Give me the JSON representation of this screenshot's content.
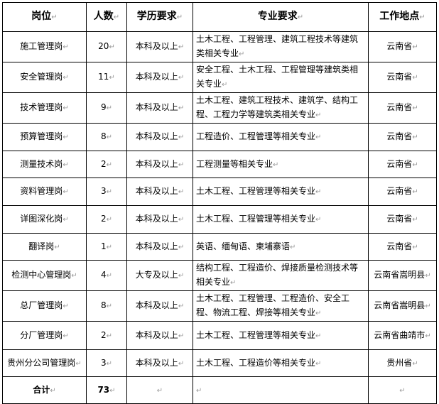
{
  "headers": [
    "岗位",
    "人数",
    "学历要求",
    "专业要求",
    "工作地点"
  ],
  "rows": [
    {
      "position": "施工管理岗",
      "count": "20",
      "education": "本科及以上",
      "major": "土木工程、工程管理、建筑工程技术等建筑类相关专业",
      "location": "云南省"
    },
    {
      "position": "安全管理岗",
      "count": "11",
      "education": "本科及以上",
      "major": "安全工程、土木工程、工程管理等建筑类相关专业",
      "location": "云南省"
    },
    {
      "position": "技术管理岗",
      "count": "9",
      "education": "本科及以上",
      "major": "土木工程、建筑工程技术、建筑学、结构工程、工程力学等建筑类相关专业",
      "location": "云南省"
    },
    {
      "position": "预算管理岗",
      "count": "8",
      "education": "本科及以上",
      "major": "工程造价、工程管理等相关专业",
      "location": "云南省"
    },
    {
      "position": "测量技术岗",
      "count": "2",
      "education": "本科及以上",
      "major": "工程测量等相关专业",
      "location": "云南省"
    },
    {
      "position": "资料管理岗",
      "count": "3",
      "education": "本科及以上",
      "major": "土木工程、工程管理等相关专业",
      "location": "云南省"
    },
    {
      "position": "详图深化岗",
      "count": "2",
      "education": "本科及以上",
      "major": "土木工程、工程管理等相关专业",
      "location": "云南省"
    },
    {
      "position": "翻译岗",
      "count": "1",
      "education": "本科及以上",
      "major": "英语、缅甸语、柬埔寨语",
      "location": "云南省"
    },
    {
      "position": "检测中心管理岗",
      "count": "4",
      "education": "大专及以上",
      "major": "结构工程、工程造价、焊接质量检测技术等相关专业",
      "location": "云南省嵩明县"
    },
    {
      "position": "总厂管理岗",
      "count": "8",
      "education": "本科及以上",
      "major": "土木工程、工程管理、工程造价、安全工程、物流工程、焊接等相关专业",
      "location": "云南省嵩明县"
    },
    {
      "position": "分厂管理岗",
      "count": "2",
      "education": "本科及以上",
      "major": "土木工程、工程管理等相关专业",
      "location": "云南省曲靖市"
    },
    {
      "position": "贵州分公司管理岗",
      "count": "3",
      "education": "本科及以上",
      "major": "土木工程、工程造价等相关专业",
      "location": "贵州省"
    }
  ],
  "total": {
    "label": "合计",
    "count": "73",
    "education": "",
    "major": "",
    "location": ""
  }
}
